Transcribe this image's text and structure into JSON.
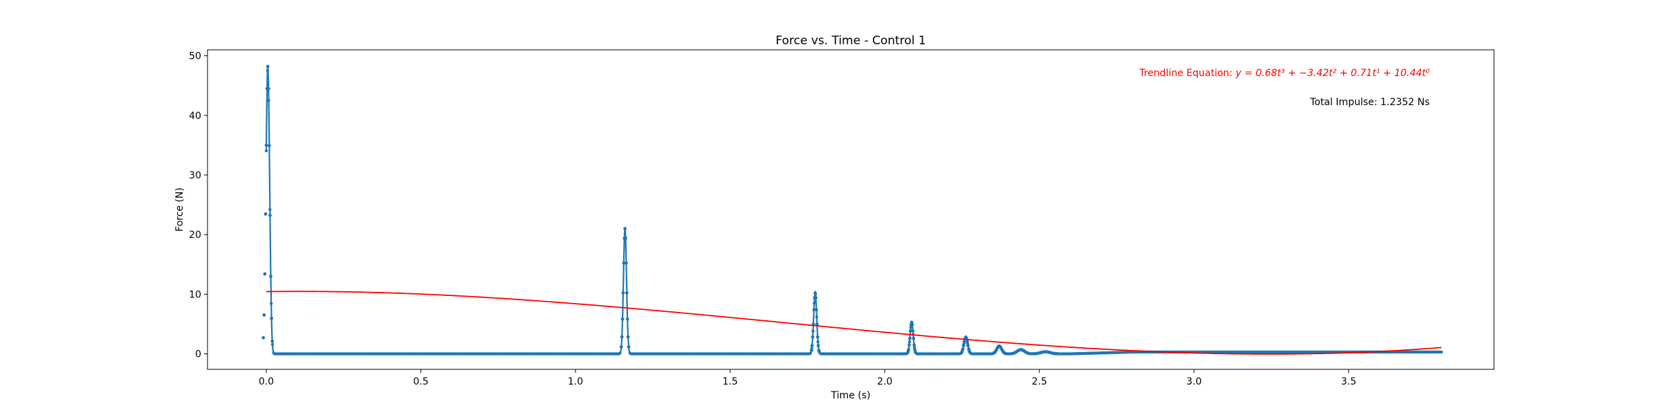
{
  "chart_data": {
    "type": "line",
    "title": "Force vs. Time - Control 1",
    "xlabel": "Time (s)",
    "ylabel": "Force (N)",
    "xlim": [
      -0.19,
      3.97
    ],
    "ylim": [
      -2.6,
      51.0
    ],
    "x_ticks": [
      0.0,
      0.5,
      1.0,
      1.5,
      2.0,
      2.5,
      3.0,
      3.5
    ],
    "x_tick_labels": [
      "0.0",
      "0.5",
      "1.0",
      "1.5",
      "2.0",
      "2.5",
      "3.0",
      "3.5"
    ],
    "y_ticks": [
      0,
      10,
      20,
      30,
      40,
      50
    ],
    "y_tick_labels": [
      "0",
      "10",
      "20",
      "30",
      "40",
      "50"
    ],
    "grid": false,
    "colors": {
      "force": "#1f77b4",
      "trendline": "#ff0000",
      "text": "#000000"
    },
    "series": [
      {
        "kind": "force",
        "x_range": [
          0.0,
          3.8
        ],
        "baseline": 0,
        "pulses": [
          {
            "t": 0.005,
            "peak": 48.2,
            "width": 0.006
          },
          {
            "t": 1.16,
            "peak": 21.0,
            "width": 0.005
          },
          {
            "t": 1.775,
            "peak": 10.2,
            "width": 0.005
          },
          {
            "t": 2.087,
            "peak": 5.3,
            "width": 0.005
          },
          {
            "t": 2.262,
            "peak": 2.8,
            "width": 0.006
          },
          {
            "t": 2.37,
            "peak": 1.3,
            "width": 0.008
          },
          {
            "t": 2.44,
            "peak": 0.7,
            "width": 0.012
          },
          {
            "t": 2.52,
            "peak": 0.35,
            "width": 0.015
          }
        ],
        "undershoot": {
          "t": 0.018,
          "value": -0.6
        },
        "tail_value": 0.3
      },
      {
        "kind": "trendline",
        "x_range": [
          0.0,
          3.8
        ],
        "coefficients": [
          0.68,
          -3.42,
          0.71,
          10.44
        ]
      }
    ],
    "annotations": {
      "trendline_label": "Trendline Equation: ",
      "trendline_equation": "y = 0.68t³ + −3.42t² + 0.71t¹ + 10.44t⁰",
      "total_impulse": "Total Impulse: 1.2352 Ns"
    }
  }
}
